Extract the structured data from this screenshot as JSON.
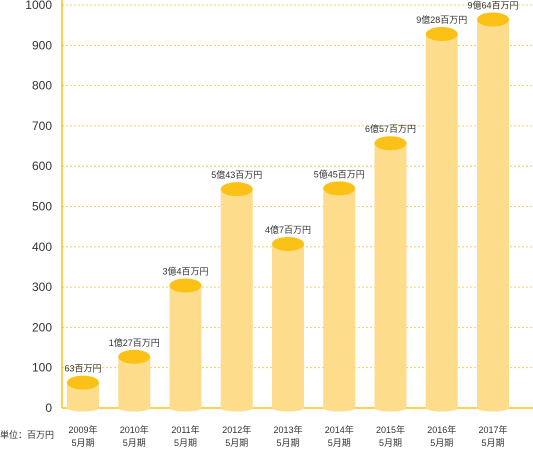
{
  "chart_data": {
    "type": "bar",
    "categories": [
      "2009年\n5月期",
      "2010年\n5月期",
      "2011年\n5月期",
      "2012年\n5月期",
      "2013年\n5月期",
      "2014年\n5月期",
      "2015年\n5月期",
      "2016年\n5月期",
      "2017年\n5月期"
    ],
    "values": [
      63,
      127,
      304,
      543,
      407,
      545,
      657,
      928,
      964
    ],
    "data_labels": [
      "63百万円",
      "1億27百万円",
      "3億4百万円",
      "5億43百万円",
      "4億7百万円",
      "5億45百万円",
      "6億57百万円",
      "9億28百万円",
      "9億64百万円"
    ],
    "y_ticks": [
      0,
      100,
      200,
      300,
      400,
      500,
      600,
      700,
      800,
      900,
      1000
    ],
    "ylim": [
      0,
      1000
    ],
    "unit_note": "単位：百万円",
    "grid": true,
    "colors": {
      "bar_body": "#FDDC8C",
      "bar_top": "#FBC117",
      "axis": "#FBC117",
      "grid": "#F5C33B",
      "text": "#333333"
    }
  }
}
